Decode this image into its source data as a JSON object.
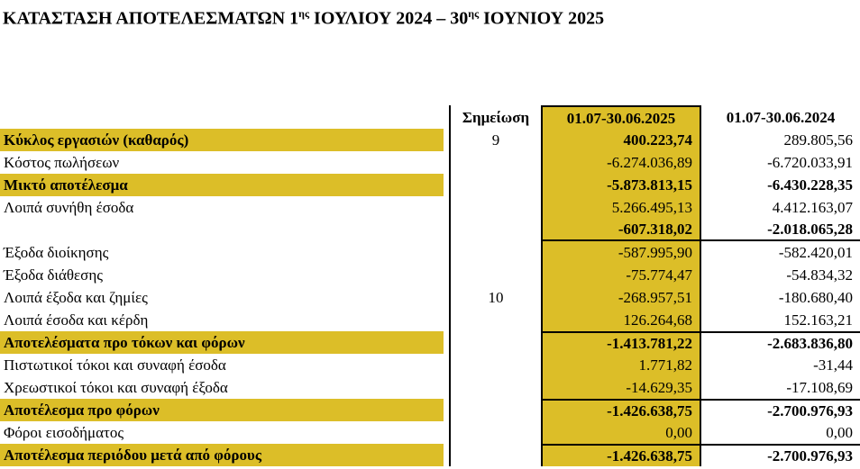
{
  "page": {
    "title": {
      "part1": "ΚΑΤΑΣΤΑΣΗ ΑΠΟΤΕΛΕΣΜΑΤΩΝ 1",
      "sup1": "ης",
      "part2": " ΙΟΥΛΙΟΥ 2024 – 30",
      "sup2": "ης",
      "part3": " ΙΟΥΝΙΟΥ 2025"
    }
  },
  "colors": {
    "highlight": "#DCBE28",
    "border": "#000000",
    "text": "#000000",
    "background": "#ffffff"
  },
  "table": {
    "headers": {
      "note": "Σημείωση",
      "period_current": "01.07-30.06.2025",
      "period_prior": "01.07-30.06.2024"
    },
    "rows": [
      {
        "label": "Κύκλος εργασιών (καθαρός)",
        "note": "9",
        "v2025": "400.223,74",
        "v2024": "289.805,56"
      },
      {
        "label": "Κόστος πωλήσεων",
        "note": "",
        "v2025": "-6.274.036,89",
        "v2024": "-6.720.033,91"
      },
      {
        "label": "Μικτό αποτέλεσμα",
        "note": "",
        "v2025": "-5.873.813,15",
        "v2024": "-6.430.228,35"
      },
      {
        "label": "Λοιπά συνήθη έσοδα",
        "note": "",
        "v2025": "5.266.495,13",
        "v2024": "4.412.163,07"
      },
      {
        "label": "",
        "note": "",
        "v2025": "-607.318,02",
        "v2024": "-2.018.065,28"
      },
      {
        "label": "Έξοδα διοίκησης",
        "note": "",
        "v2025": "-587.995,90",
        "v2024": "-582.420,01"
      },
      {
        "label": "Έξοδα διάθεσης",
        "note": "",
        "v2025": "-75.774,47",
        "v2024": "-54.834,32"
      },
      {
        "label": "Λοιπά έξοδα και ζημίες",
        "note": "10",
        "v2025": "-268.957,51",
        "v2024": "-180.680,40"
      },
      {
        "label": "Λοιπά έσοδα και κέρδη",
        "note": "",
        "v2025": "126.264,68",
        "v2024": "152.163,21"
      },
      {
        "label": "Αποτελέσματα προ τόκων και φόρων",
        "note": "",
        "v2025": "-1.413.781,22",
        "v2024": "-2.683.836,80"
      },
      {
        "label": "Πιστωτικοί τόκοι και συναφή έσοδα",
        "note": "",
        "v2025": "1.771,82",
        "v2024": "-31,44"
      },
      {
        "label": "Χρεωστικοί τόκοι και συναφή έξοδα",
        "note": "",
        "v2025": "-14.629,35",
        "v2024": "-17.108,69"
      },
      {
        "label": "Αποτέλεσμα προ φόρων",
        "note": "",
        "v2025": "-1.426.638,75",
        "v2024": "-2.700.976,93"
      },
      {
        "label": "Φόροι εισοδήματος",
        "note": "",
        "v2025": "0,00",
        "v2024": "0,00"
      },
      {
        "label": "Αποτέλεσμα περιόδου μετά από φόρους",
        "note": "",
        "v2025": "-1.426.638,75",
        "v2024": "-2.700.976,93"
      }
    ]
  }
}
